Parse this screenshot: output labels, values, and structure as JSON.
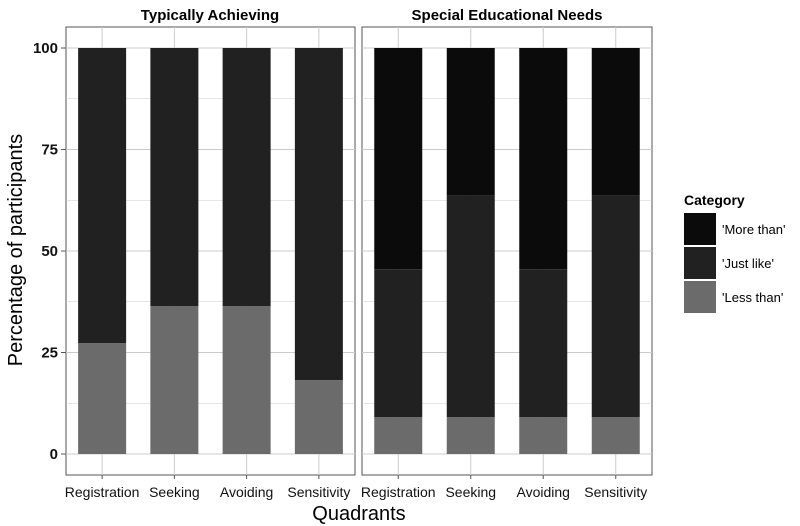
{
  "chart_data": {
    "type": "bar",
    "stacked": true,
    "ylabel": "Percentage of participants",
    "xlabel": "Quadrants",
    "ylim": [
      0,
      100
    ],
    "yticks": [
      0,
      25,
      50,
      75,
      100
    ],
    "grid": true,
    "legend": {
      "title": "Category",
      "position": "right",
      "entries": [
        "'More than'",
        "'Just like'",
        "'Less than'"
      ]
    },
    "colors": {
      "More than": "#0b0b0b",
      "Just like": "#212121",
      "Less than": "#6b6b6b"
    },
    "categories": [
      "Registration",
      "Seeking",
      "Avoiding",
      "Sensitivity"
    ],
    "panels": [
      {
        "title": "Typically Achieving",
        "series": [
          {
            "name": "'Less than'",
            "values": [
              27.3,
              36.4,
              36.4,
              18.2
            ]
          },
          {
            "name": "'Just like'",
            "values": [
              72.7,
              63.6,
              63.6,
              81.8
            ]
          },
          {
            "name": "'More than'",
            "values": [
              0,
              0,
              0,
              0
            ]
          }
        ]
      },
      {
        "title": "Special Educational Needs",
        "series": [
          {
            "name": "'Less than'",
            "values": [
              9.1,
              9.1,
              9.1,
              9.1
            ]
          },
          {
            "name": "'Just like'",
            "values": [
              36.4,
              54.5,
              36.4,
              54.5
            ]
          },
          {
            "name": "'More than'",
            "values": [
              54.5,
              36.4,
              54.5,
              36.4
            ]
          }
        ]
      }
    ]
  }
}
